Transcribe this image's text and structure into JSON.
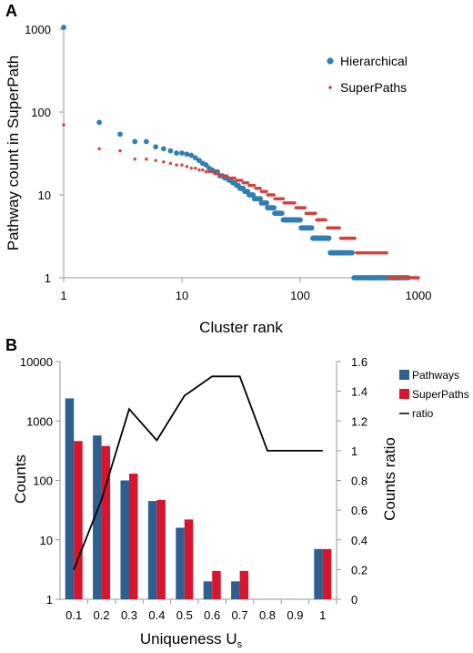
{
  "chart_data": [
    {
      "panel": "A",
      "type": "scatter",
      "xlabel": "Cluster rank",
      "ylabel": "Pathway count in SuperPath",
      "x_scale": "log",
      "y_scale": "log",
      "xlim": [
        1,
        1000
      ],
      "ylim": [
        1,
        1000
      ],
      "x_ticks": [
        "1",
        "10",
        "100",
        "1000"
      ],
      "y_ticks": [
        "1",
        "10",
        "100",
        "1000"
      ],
      "legend_position": "top-right",
      "colors": {
        "Hierarchical": "#2f7fb5",
        "SuperPaths": "#d0433b"
      },
      "series": [
        {
          "name": "Hierarchical",
          "marker": "large-dot",
          "points": [
            [
              1,
              1050
            ],
            [
              2,
              75
            ],
            [
              3,
              54
            ],
            [
              4,
              44
            ],
            [
              5,
              44
            ],
            [
              6,
              38
            ],
            [
              7,
              36
            ],
            [
              8,
              34
            ],
            [
              9,
              32
            ],
            [
              10,
              32
            ],
            [
              11,
              31
            ],
            [
              12,
              30
            ],
            [
              13,
              28
            ],
            [
              14,
              26
            ],
            [
              15,
              24
            ],
            [
              16,
              23
            ],
            [
              17,
              21
            ],
            [
              18,
              20
            ],
            [
              19,
              19
            ],
            [
              20,
              19
            ]
          ],
          "runs": [
            {
              "y": 17,
              "from": 21,
              "to": 22
            },
            {
              "y": 16,
              "from": 23,
              "to": 24
            },
            {
              "y": 15,
              "from": 25,
              "to": 26
            },
            {
              "y": 14,
              "from": 27,
              "to": 28
            },
            {
              "y": 13,
              "from": 29,
              "to": 30
            },
            {
              "y": 12,
              "from": 31,
              "to": 33
            },
            {
              "y": 11,
              "from": 34,
              "to": 36
            },
            {
              "y": 10,
              "from": 37,
              "to": 40
            },
            {
              "y": 9,
              "from": 41,
              "to": 46
            },
            {
              "y": 8,
              "from": 47,
              "to": 52
            },
            {
              "y": 7,
              "from": 53,
              "to": 60
            },
            {
              "y": 6,
              "from": 61,
              "to": 70
            },
            {
              "y": 5,
              "from": 72,
              "to": 100
            },
            {
              "y": 4,
              "from": 102,
              "to": 125
            },
            {
              "y": 3,
              "from": 128,
              "to": 175
            },
            {
              "y": 2,
              "from": 180,
              "to": 275
            },
            {
              "y": 1,
              "from": 285,
              "to": 820
            }
          ]
        },
        {
          "name": "SuperPaths",
          "marker": "small-dot",
          "points": [
            [
              1,
              70
            ],
            [
              2,
              36
            ],
            [
              3,
              34
            ],
            [
              4,
              27
            ],
            [
              5,
              27
            ],
            [
              6,
              26
            ],
            [
              7,
              25
            ],
            [
              8,
              24
            ],
            [
              9,
              23
            ],
            [
              10,
              23
            ],
            [
              11,
              22
            ],
            [
              12,
              21
            ],
            [
              13,
              21
            ],
            [
              14,
              20
            ],
            [
              15,
              20
            ],
            [
              16,
              19
            ],
            [
              17,
              19
            ],
            [
              18,
              19
            ],
            [
              19,
              18
            ],
            [
              20,
              18
            ]
          ],
          "runs": [
            {
              "y": 17,
              "from": 21,
              "to": 24
            },
            {
              "y": 16,
              "from": 25,
              "to": 28
            },
            {
              "y": 15,
              "from": 29,
              "to": 32
            },
            {
              "y": 14,
              "from": 33,
              "to": 36
            },
            {
              "y": 13,
              "from": 37,
              "to": 41
            },
            {
              "y": 12,
              "from": 42,
              "to": 46
            },
            {
              "y": 11,
              "from": 47,
              "to": 52
            },
            {
              "y": 10,
              "from": 53,
              "to": 60
            },
            {
              "y": 9,
              "from": 61,
              "to": 72
            },
            {
              "y": 8,
              "from": 73,
              "to": 90
            },
            {
              "y": 7,
              "from": 92,
              "to": 110
            },
            {
              "y": 6,
              "from": 112,
              "to": 135
            },
            {
              "y": 5,
              "from": 138,
              "to": 165
            },
            {
              "y": 4,
              "from": 170,
              "to": 215
            },
            {
              "y": 3,
              "from": 220,
              "to": 290
            },
            {
              "y": 2,
              "from": 300,
              "to": 540
            },
            {
              "y": 1,
              "from": 560,
              "to": 1000
            }
          ]
        }
      ]
    },
    {
      "panel": "B",
      "type": "bar",
      "xlabel_main": "Uniqueness U",
      "xlabel_sub": "s",
      "ylabel": "Counts",
      "y2label": "Counts ratio",
      "y_scale": "log",
      "ylim": [
        1,
        10000
      ],
      "y_ticks": [
        "1",
        "10",
        "100",
        "1000",
        "10000"
      ],
      "y2lim": [
        0,
        1.6
      ],
      "y2_ticks": [
        "0",
        "0.2",
        "0.4",
        "0.6",
        "0.8",
        "1",
        "1.2",
        "1.4",
        "1.6"
      ],
      "categories": [
        "0.1",
        "0.2",
        "0.3",
        "0.4",
        "0.5",
        "0.6",
        "0.7",
        "0.8",
        "0.9",
        "1"
      ],
      "legend_position": "top-right",
      "colors": {
        "Pathways": "#2e5f8f",
        "SuperPaths": "#d7152e",
        "ratio": "#000000"
      },
      "series": [
        {
          "name": "Pathways",
          "values": [
            2400,
            570,
            100,
            45,
            16,
            2,
            2,
            null,
            null,
            7
          ]
        },
        {
          "name": "SuperPaths",
          "values": [
            460,
            380,
            130,
            47,
            22,
            3,
            3,
            null,
            null,
            7
          ]
        }
      ],
      "line_series": {
        "name": "ratio",
        "points": [
          [
            0.1,
            0.2
          ],
          [
            0.2,
            0.67
          ],
          [
            0.3,
            1.28
          ],
          [
            0.4,
            1.07
          ],
          [
            0.5,
            1.37
          ],
          [
            0.6,
            1.5
          ],
          [
            0.7,
            1.5
          ],
          [
            0.8,
            1.0
          ],
          [
            0.9,
            1.0
          ],
          [
            1.0,
            1.0
          ]
        ]
      }
    }
  ]
}
